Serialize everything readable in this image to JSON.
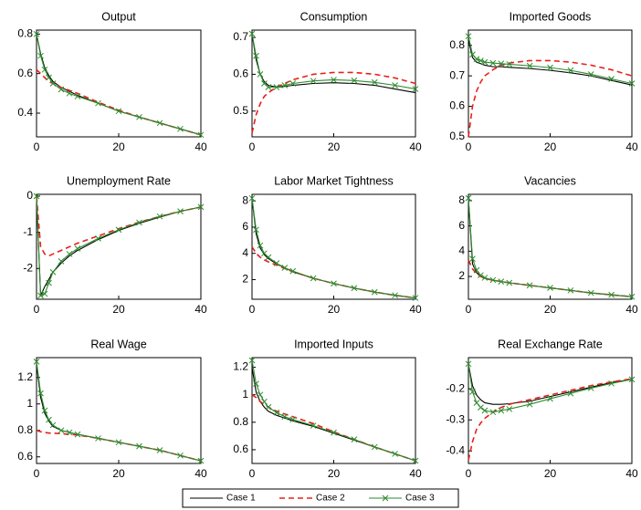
{
  "legend": [
    {
      "name": "Case 1",
      "color": "#000000",
      "dash": false,
      "marker": false
    },
    {
      "name": "Case 2",
      "color": "#e8201a",
      "dash": true,
      "marker": false
    },
    {
      "name": "Case 3",
      "color": "#2e8b2e",
      "dash": false,
      "marker": true
    }
  ],
  "chart_data": [
    {
      "type": "line",
      "title": "Output",
      "x": [
        0,
        1,
        2,
        3,
        4,
        6,
        8,
        10,
        15,
        20,
        25,
        30,
        35,
        40
      ],
      "xlim": [
        0,
        40
      ],
      "xticks": [
        0,
        20,
        40
      ],
      "ylim": [
        0.28,
        0.82
      ],
      "yticks": [
        0.4,
        0.6,
        0.8
      ],
      "series": [
        {
          "values": [
            0.8,
            0.7,
            0.63,
            0.59,
            0.56,
            0.53,
            0.51,
            0.49,
            0.45,
            0.41,
            0.38,
            0.35,
            0.32,
            0.29
          ]
        },
        {
          "values": [
            0.62,
            0.6,
            0.58,
            0.56,
            0.55,
            0.53,
            0.515,
            0.5,
            0.455,
            0.415,
            0.38,
            0.35,
            0.32,
            0.29
          ]
        },
        {
          "values": [
            0.8,
            0.69,
            0.62,
            0.58,
            0.55,
            0.52,
            0.5,
            0.485,
            0.45,
            0.41,
            0.38,
            0.35,
            0.32,
            0.29
          ]
        }
      ]
    },
    {
      "type": "line",
      "title": "Consumption",
      "x": [
        0,
        1,
        2,
        3,
        4,
        6,
        8,
        10,
        15,
        20,
        25,
        30,
        35,
        40
      ],
      "xlim": [
        0,
        40
      ],
      "xticks": [
        0,
        20,
        40
      ],
      "ylim": [
        0.43,
        0.72
      ],
      "yticks": [
        0.5,
        0.6,
        0.7
      ],
      "series": [
        {
          "values": [
            0.71,
            0.64,
            0.6,
            0.58,
            0.57,
            0.565,
            0.567,
            0.57,
            0.575,
            0.577,
            0.575,
            0.57,
            0.56,
            0.55
          ]
        },
        {
          "values": [
            0.44,
            0.49,
            0.52,
            0.54,
            0.55,
            0.565,
            0.575,
            0.585,
            0.6,
            0.605,
            0.605,
            0.6,
            0.59,
            0.575
          ]
        },
        {
          "values": [
            0.71,
            0.65,
            0.6,
            0.575,
            0.565,
            0.565,
            0.57,
            0.575,
            0.582,
            0.585,
            0.583,
            0.578,
            0.57,
            0.56
          ]
        }
      ]
    },
    {
      "type": "line",
      "title": "Imported Goods",
      "x": [
        0,
        1,
        2,
        3,
        4,
        6,
        8,
        10,
        15,
        20,
        25,
        30,
        35,
        40
      ],
      "xlim": [
        0,
        40
      ],
      "xticks": [
        0,
        20,
        40
      ],
      "ylim": [
        0.5,
        0.85
      ],
      "yticks": [
        0.5,
        0.6,
        0.7,
        0.8
      ],
      "series": [
        {
          "values": [
            0.82,
            0.76,
            0.745,
            0.74,
            0.735,
            0.73,
            0.73,
            0.728,
            0.724,
            0.718,
            0.71,
            0.7,
            0.685,
            0.67
          ]
        },
        {
          "values": [
            0.5,
            0.6,
            0.65,
            0.68,
            0.7,
            0.72,
            0.735,
            0.742,
            0.75,
            0.75,
            0.745,
            0.735,
            0.72,
            0.7
          ]
        },
        {
          "values": [
            0.83,
            0.77,
            0.755,
            0.75,
            0.745,
            0.742,
            0.74,
            0.738,
            0.733,
            0.727,
            0.718,
            0.705,
            0.69,
            0.675
          ]
        }
      ]
    },
    {
      "type": "line",
      "title": "Unemployment Rate",
      "x": [
        0,
        1,
        2,
        3,
        4,
        6,
        8,
        10,
        15,
        20,
        25,
        30,
        35,
        40
      ],
      "xlim": [
        0,
        40
      ],
      "xticks": [
        0,
        20,
        40
      ],
      "ylim": [
        -2.85,
        0.05
      ],
      "yticks": [
        -2,
        -1,
        0
      ],
      "series": [
        {
          "values": [
            0,
            -2.75,
            -2.5,
            -2.3,
            -2.1,
            -1.85,
            -1.65,
            -1.5,
            -1.2,
            -0.95,
            -0.75,
            -0.58,
            -0.42,
            -0.3
          ]
        },
        {
          "values": [
            0,
            -1.4,
            -1.6,
            -1.65,
            -1.6,
            -1.5,
            -1.4,
            -1.3,
            -1.1,
            -0.9,
            -0.72,
            -0.56,
            -0.42,
            -0.3
          ]
        },
        {
          "values": [
            0,
            -2.75,
            -2.7,
            -2.4,
            -2.1,
            -1.8,
            -1.6,
            -1.45,
            -1.17,
            -0.93,
            -0.73,
            -0.56,
            -0.42,
            -0.3
          ]
        }
      ]
    },
    {
      "type": "line",
      "title": "Labor Market Tightness",
      "x": [
        0,
        1,
        2,
        3,
        4,
        6,
        8,
        10,
        15,
        20,
        25,
        30,
        35,
        40
      ],
      "xlim": [
        0,
        40
      ],
      "xticks": [
        0,
        20,
        40
      ],
      "ylim": [
        0.5,
        8.5
      ],
      "yticks": [
        2,
        4,
        6,
        8
      ],
      "series": [
        {
          "values": [
            8.2,
            5.5,
            4.4,
            3.9,
            3.6,
            3.2,
            2.9,
            2.6,
            2.1,
            1.7,
            1.35,
            1.05,
            0.8,
            0.6
          ]
        },
        {
          "values": [
            4.5,
            4.0,
            3.7,
            3.5,
            3.35,
            3.1,
            2.85,
            2.6,
            2.1,
            1.7,
            1.35,
            1.05,
            0.8,
            0.6
          ]
        },
        {
          "values": [
            8.2,
            5.8,
            4.6,
            4.0,
            3.7,
            3.25,
            2.9,
            2.65,
            2.1,
            1.7,
            1.35,
            1.05,
            0.8,
            0.6
          ]
        }
      ]
    },
    {
      "type": "line",
      "title": "Vacancies",
      "x": [
        0,
        1,
        2,
        3,
        4,
        6,
        8,
        10,
        15,
        20,
        25,
        30,
        35,
        40
      ],
      "xlim": [
        0,
        40
      ],
      "xticks": [
        0,
        20,
        40
      ],
      "ylim": [
        0.2,
        8.5
      ],
      "yticks": [
        2,
        4,
        6,
        8
      ],
      "series": [
        {
          "values": [
            8.2,
            3.0,
            2.3,
            2.0,
            1.85,
            1.7,
            1.6,
            1.5,
            1.3,
            1.1,
            0.9,
            0.7,
            0.55,
            0.4
          ]
        },
        {
          "values": [
            3.3,
            2.6,
            2.2,
            2.0,
            1.85,
            1.7,
            1.6,
            1.5,
            1.3,
            1.1,
            0.9,
            0.7,
            0.55,
            0.4
          ]
        },
        {
          "values": [
            8.2,
            3.4,
            2.5,
            2.1,
            1.9,
            1.72,
            1.6,
            1.5,
            1.3,
            1.1,
            0.9,
            0.7,
            0.55,
            0.4
          ]
        }
      ]
    },
    {
      "type": "line",
      "title": "Real Wage",
      "x": [
        0,
        1,
        2,
        3,
        4,
        6,
        8,
        10,
        15,
        20,
        25,
        30,
        35,
        40
      ],
      "xlim": [
        0,
        40
      ],
      "xticks": [
        0,
        20,
        40
      ],
      "ylim": [
        0.55,
        1.35
      ],
      "yticks": [
        0.6,
        0.8,
        1,
        1.2
      ],
      "series": [
        {
          "values": [
            1.3,
            1.05,
            0.93,
            0.87,
            0.83,
            0.8,
            0.785,
            0.77,
            0.74,
            0.71,
            0.68,
            0.65,
            0.61,
            0.57
          ]
        },
        {
          "values": [
            0.8,
            0.79,
            0.785,
            0.78,
            0.78,
            0.775,
            0.77,
            0.765,
            0.74,
            0.71,
            0.68,
            0.65,
            0.61,
            0.57
          ]
        },
        {
          "values": [
            1.32,
            1.08,
            0.95,
            0.88,
            0.84,
            0.8,
            0.785,
            0.77,
            0.74,
            0.71,
            0.68,
            0.65,
            0.61,
            0.57
          ]
        }
      ]
    },
    {
      "type": "line",
      "title": "Imported Inputs",
      "x": [
        0,
        1,
        2,
        3,
        4,
        6,
        8,
        10,
        15,
        20,
        25,
        30,
        35,
        40
      ],
      "xlim": [
        0,
        40
      ],
      "xticks": [
        0,
        20,
        40
      ],
      "ylim": [
        0.5,
        1.27
      ],
      "yticks": [
        0.6,
        0.8,
        1,
        1.2
      ],
      "series": [
        {
          "values": [
            1.2,
            1.02,
            0.95,
            0.91,
            0.88,
            0.85,
            0.83,
            0.81,
            0.77,
            0.72,
            0.67,
            0.62,
            0.57,
            0.52
          ]
        },
        {
          "values": [
            1.0,
            0.98,
            0.95,
            0.93,
            0.91,
            0.88,
            0.86,
            0.84,
            0.79,
            0.73,
            0.675,
            0.62,
            0.57,
            0.52
          ]
        },
        {
          "values": [
            1.25,
            1.08,
            1.0,
            0.95,
            0.91,
            0.87,
            0.84,
            0.82,
            0.775,
            0.725,
            0.675,
            0.62,
            0.57,
            0.52
          ]
        }
      ]
    },
    {
      "type": "line",
      "title": "Real Exchange Rate",
      "x": [
        0,
        1,
        2,
        3,
        4,
        6,
        8,
        10,
        15,
        20,
        25,
        30,
        35,
        40
      ],
      "xlim": [
        0,
        40
      ],
      "xticks": [
        0,
        20,
        40
      ],
      "ylim": [
        -0.44,
        -0.1
      ],
      "yticks": [
        -0.4,
        -0.3,
        -0.2
      ],
      "series": [
        {
          "values": [
            -0.12,
            -0.19,
            -0.22,
            -0.235,
            -0.245,
            -0.25,
            -0.25,
            -0.248,
            -0.24,
            -0.225,
            -0.21,
            -0.195,
            -0.18,
            -0.17
          ]
        },
        {
          "values": [
            -0.43,
            -0.37,
            -0.33,
            -0.31,
            -0.295,
            -0.275,
            -0.26,
            -0.25,
            -0.235,
            -0.22,
            -0.205,
            -0.19,
            -0.178,
            -0.168
          ]
        },
        {
          "values": [
            -0.12,
            -0.21,
            -0.245,
            -0.26,
            -0.27,
            -0.275,
            -0.27,
            -0.265,
            -0.25,
            -0.232,
            -0.215,
            -0.198,
            -0.183,
            -0.17
          ]
        }
      ]
    }
  ]
}
